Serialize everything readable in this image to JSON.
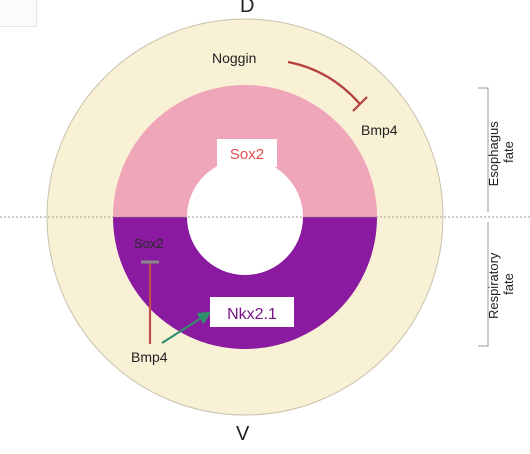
{
  "orientation": {
    "dorsal": "D",
    "ventral": "V"
  },
  "labels": {
    "noggin": "Noggin",
    "bmp4_top": "Bmp4",
    "sox2_top": "Sox2",
    "sox2_bottom": "Sox2",
    "nkx21": "Nkx2.1",
    "bmp4_bottom": "Bmp4"
  },
  "fates": {
    "esophagus_line1": "Esophagus",
    "esophagus_line2": "fate",
    "respiratory_line1": "Respiratory",
    "respiratory_line2": "fate"
  },
  "colors": {
    "mesenchyme": "#f9f1d6",
    "dorsal_epithelium": "#f0a6b9",
    "ventral_epithelium": "#8a1aa0",
    "inhibition": "#b5403f",
    "activation": "#2f8f6c",
    "sox2_top_text": "#e24c4c",
    "nkx21_text": "#7a1488"
  }
}
